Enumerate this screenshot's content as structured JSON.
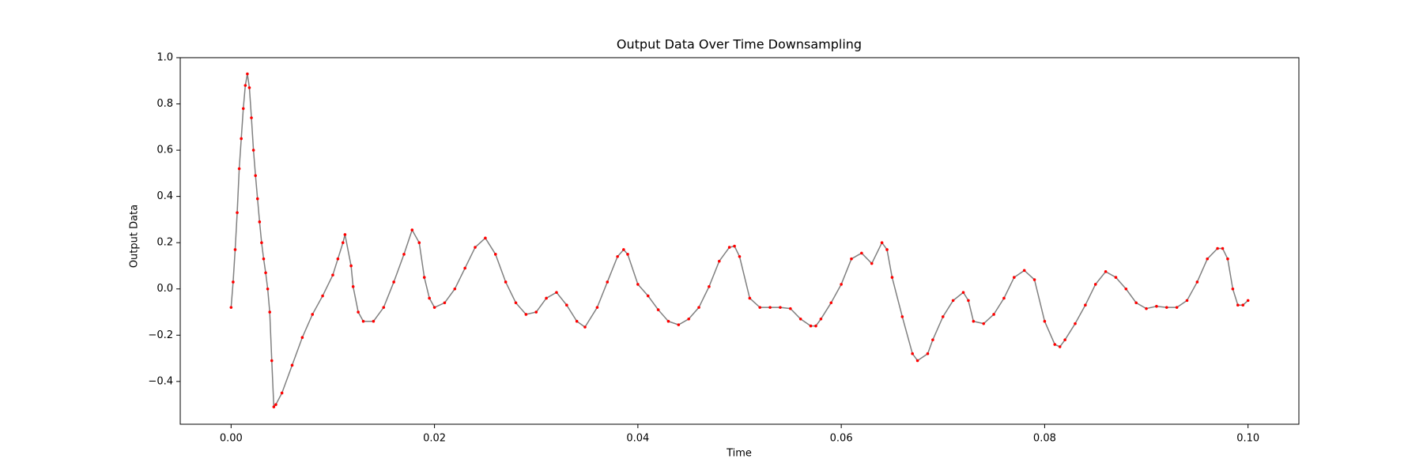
{
  "chart_data": {
    "type": "line",
    "title": "Output Data Over Time Downsampling",
    "xlabel": "Time",
    "ylabel": "Output Data",
    "xlim": [
      -0.005,
      0.105
    ],
    "ylim": [
      -0.585,
      1.0
    ],
    "xticks": [
      {
        "value": 0,
        "label": "0.00"
      },
      {
        "value": 0.02,
        "label": "0.02"
      },
      {
        "value": 0.04,
        "label": "0.04"
      },
      {
        "value": 0.06,
        "label": "0.06"
      },
      {
        "value": 0.08,
        "label": "0.08"
      },
      {
        "value": 0.1,
        "label": "0.10"
      }
    ],
    "yticks": [
      {
        "value": -0.4,
        "label": "−0.4"
      },
      {
        "value": -0.2,
        "label": "−0.2"
      },
      {
        "value": 0,
        "label": "0.0"
      },
      0.2,
      0.4,
      0.6,
      0.8,
      {
        "value": 1.0,
        "label": "1.0"
      }
    ],
    "grid": false,
    "series": [
      {
        "color": "#808080",
        "marker_color": "#ff0000",
        "x": [
          0,
          0.0002,
          0.0004,
          0.0006,
          0.0008,
          0.001,
          0.0012,
          0.0014,
          0.0016,
          0.0018,
          0.002,
          0.0022,
          0.0024,
          0.0026,
          0.0028,
          0.003,
          0.0032,
          0.0034,
          0.0036,
          0.0038,
          0.004,
          0.0042,
          0.0044,
          0.005,
          0.006,
          0.007,
          0.008,
          0.009,
          0.01,
          0.0105,
          0.011,
          0.0112,
          0.0118,
          0.012,
          0.0125,
          0.013,
          0.014,
          0.015,
          0.016,
          0.017,
          0.0178,
          0.0185,
          0.019,
          0.0195,
          0.02,
          0.021,
          0.022,
          0.023,
          0.024,
          0.025,
          0.026,
          0.027,
          0.028,
          0.029,
          0.03,
          0.031,
          0.032,
          0.033,
          0.034,
          0.0348,
          0.036,
          0.037,
          0.038,
          0.0386,
          0.039,
          0.04,
          0.041,
          0.042,
          0.043,
          0.044,
          0.045,
          0.046,
          0.047,
          0.048,
          0.049,
          0.0495,
          0.05,
          0.051,
          0.052,
          0.053,
          0.054,
          0.055,
          0.056,
          0.057,
          0.0575,
          0.058,
          0.059,
          0.06,
          0.061,
          0.062,
          0.063,
          0.064,
          0.0645,
          0.065,
          0.066,
          0.067,
          0.0675,
          0.0685,
          0.069,
          0.07,
          0.071,
          0.072,
          0.0725,
          0.073,
          0.074,
          0.075,
          0.076,
          0.077,
          0.078,
          0.079,
          0.08,
          0.081,
          0.0815,
          0.082,
          0.083,
          0.084,
          0.085,
          0.086,
          0.087,
          0.088,
          0.089,
          0.09,
          0.091,
          0.092,
          0.093,
          0.094,
          0.095,
          0.096,
          0.097,
          0.0975,
          0.098,
          0.0985,
          0.099,
          0.0995,
          0.1
        ],
        "values": [
          -0.08,
          0.03,
          0.17,
          0.33,
          0.52,
          0.65,
          0.78,
          0.88,
          0.93,
          0.87,
          0.74,
          0.6,
          0.49,
          0.39,
          0.29,
          0.2,
          0.13,
          0.07,
          0.0,
          -0.1,
          -0.31,
          -0.51,
          -0.5,
          -0.45,
          -0.33,
          -0.21,
          -0.11,
          -0.03,
          0.06,
          0.13,
          0.2,
          0.235,
          0.1,
          0.01,
          -0.1,
          -0.14,
          -0.14,
          -0.08,
          0.03,
          0.15,
          0.255,
          0.2,
          0.05,
          -0.04,
          -0.08,
          -0.06,
          0.0,
          0.09,
          0.18,
          0.22,
          0.15,
          0.03,
          -0.06,
          -0.11,
          -0.1,
          -0.04,
          -0.015,
          -0.07,
          -0.14,
          -0.165,
          -0.08,
          0.03,
          0.14,
          0.17,
          0.15,
          0.02,
          -0.03,
          -0.09,
          -0.14,
          -0.155,
          -0.13,
          -0.08,
          0.01,
          0.12,
          0.18,
          0.185,
          0.14,
          -0.04,
          -0.08,
          -0.08,
          -0.08,
          -0.085,
          -0.13,
          -0.16,
          -0.16,
          -0.13,
          -0.06,
          0.02,
          0.13,
          0.155,
          0.11,
          0.2,
          0.17,
          0.05,
          -0.12,
          -0.28,
          -0.31,
          -0.28,
          -0.22,
          -0.12,
          -0.05,
          -0.015,
          -0.05,
          -0.14,
          -0.15,
          -0.11,
          -0.04,
          0.05,
          0.08,
          0.04,
          -0.14,
          -0.24,
          -0.25,
          -0.22,
          -0.15,
          -0.07,
          0.02,
          0.075,
          0.05,
          0.0,
          -0.06,
          -0.085,
          -0.075,
          -0.08,
          -0.08,
          -0.05,
          0.03,
          0.13,
          0.175,
          0.175,
          0.13,
          0.0,
          -0.07,
          -0.07,
          -0.05
        ]
      }
    ]
  }
}
